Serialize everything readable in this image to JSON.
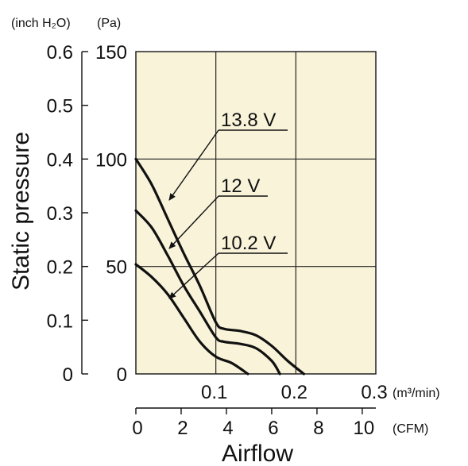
{
  "chart_data": {
    "type": "line",
    "xlabel": "Airflow",
    "ylabel": "Static pressure",
    "x_unit_primary": "(m³/min)",
    "x_unit_secondary": "(CFM)",
    "y_unit_primary": "(Pa)",
    "y_unit_secondary": "(inch H₂O)",
    "xlim": [
      0,
      0.3
    ],
    "ylim": [
      0,
      150
    ],
    "x_ticks": [
      "0.1",
      "0.2",
      "0.3"
    ],
    "x_ticks_values": [
      0.1,
      0.2,
      0.3
    ],
    "y_ticks": [
      "0",
      "50",
      "100",
      "150"
    ],
    "y_ticks_values": [
      0,
      50,
      100,
      150
    ],
    "x2_ticks": [
      "0",
      "2",
      "4",
      "6",
      "8",
      "10"
    ],
    "x2_ticks_values": [
      0,
      2,
      4,
      6,
      8,
      10
    ],
    "y2_ticks": [
      "0",
      "0.1",
      "0.2",
      "0.3",
      "0.4",
      "0.5",
      "0.6"
    ],
    "y2_ticks_values": [
      0,
      0.1,
      0.2,
      0.3,
      0.4,
      0.5,
      0.6
    ],
    "grid": true,
    "plot_background": "#f8f3d9",
    "line_color": "#111111",
    "series": [
      {
        "name": "13.8 V",
        "x": [
          0,
          0.02,
          0.04,
          0.06,
          0.08,
          0.1,
          0.11,
          0.13,
          0.15,
          0.17,
          0.19,
          0.21
        ],
        "y": [
          100,
          88,
          72,
          56,
          41,
          24,
          21,
          20,
          18,
          13,
          6,
          0
        ]
      },
      {
        "name": "12 V",
        "x": [
          0,
          0.02,
          0.04,
          0.06,
          0.08,
          0.1,
          0.11,
          0.13,
          0.15,
          0.17,
          0.18
        ],
        "y": [
          76,
          68,
          55,
          41,
          29,
          17,
          15,
          14,
          12,
          6,
          0
        ]
      },
      {
        "name": "10.2 V",
        "x": [
          0,
          0.02,
          0.04,
          0.06,
          0.08,
          0.1,
          0.12,
          0.14
        ],
        "y": [
          51,
          45,
          37,
          26,
          15,
          8,
          5,
          0
        ]
      }
    ]
  }
}
